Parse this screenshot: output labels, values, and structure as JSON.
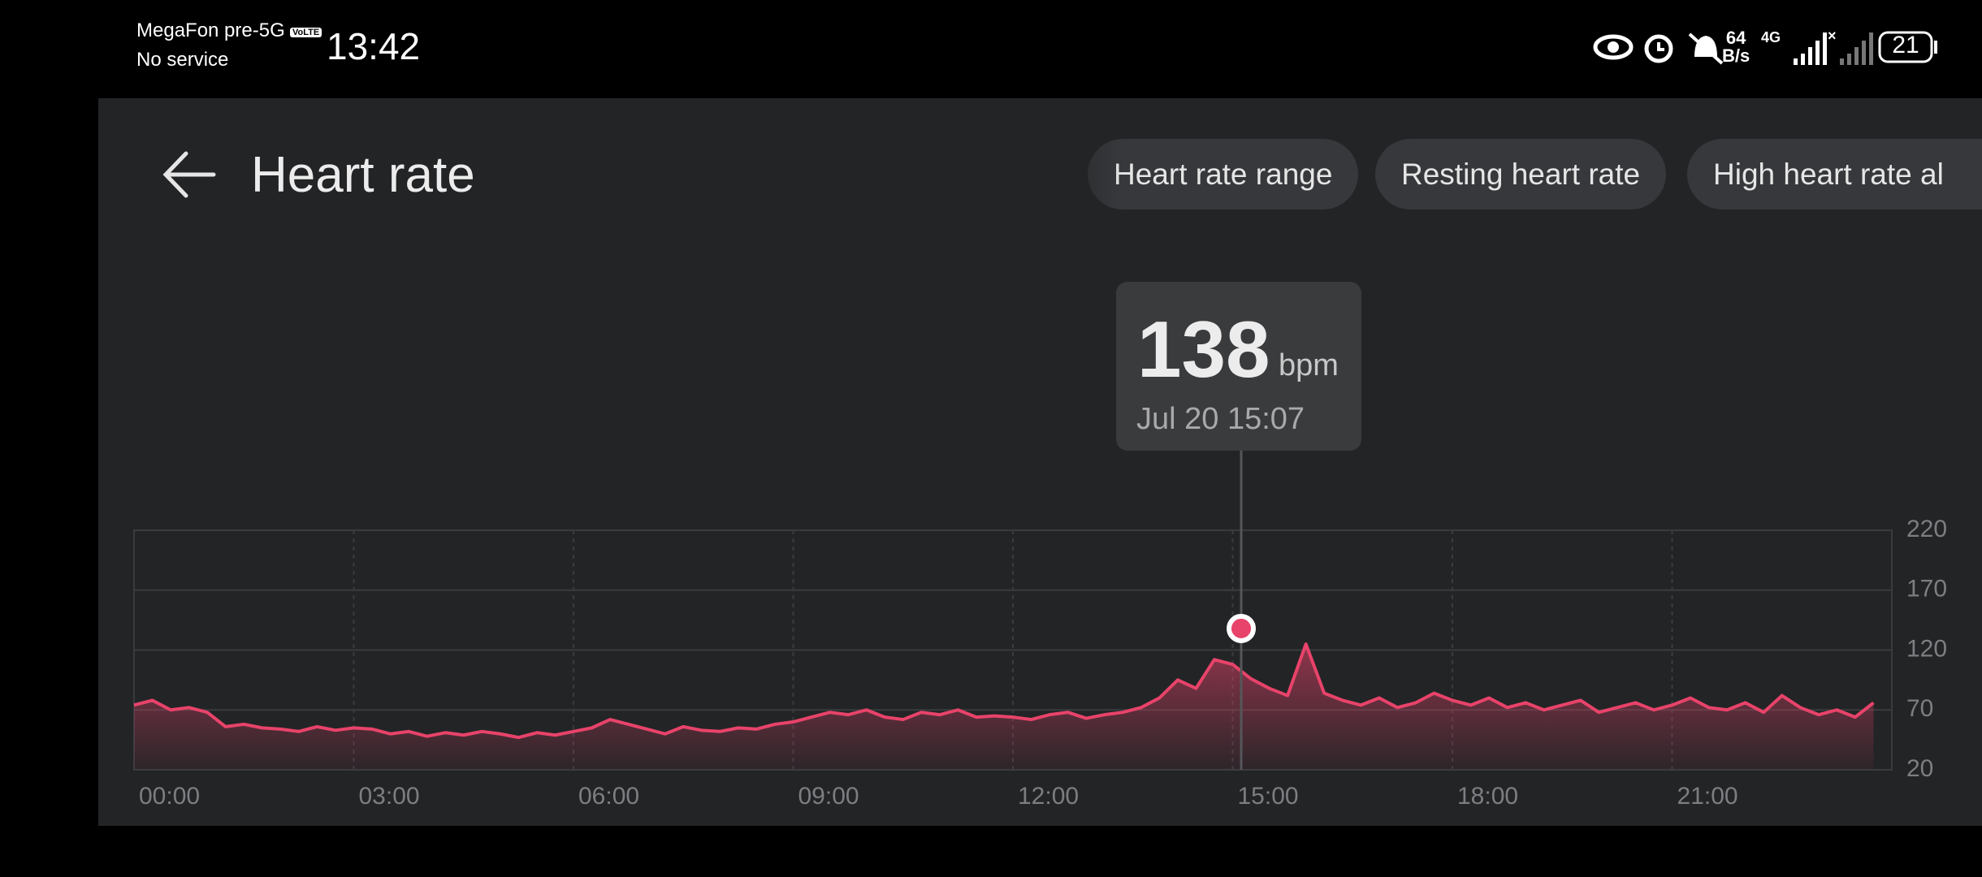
{
  "status_bar": {
    "carrier": "MegaFon pre-5G",
    "volte": "VoLTE",
    "service": "No service",
    "time": "13:42",
    "net_speed": "64",
    "net_unit": "B/s",
    "network": "4G",
    "battery": "21"
  },
  "header": {
    "title": "Heart rate",
    "tabs": [
      "Heart rate range",
      "Resting heart rate",
      "High heart rate al"
    ]
  },
  "chart_data": {
    "type": "line",
    "color": "#e8436a",
    "unit": "bpm",
    "x": [
      0,
      0.25,
      0.5,
      0.75,
      1,
      1.25,
      1.5,
      1.75,
      2,
      2.25,
      2.5,
      2.75,
      3,
      3.25,
      3.5,
      3.75,
      4,
      4.25,
      4.5,
      4.75,
      5,
      5.25,
      5.5,
      5.75,
      6,
      6.25,
      6.5,
      6.75,
      7,
      7.25,
      7.5,
      7.75,
      8,
      8.25,
      8.5,
      8.75,
      9,
      9.25,
      9.5,
      9.75,
      10,
      10.25,
      10.5,
      10.75,
      11,
      11.25,
      11.5,
      11.75,
      12,
      12.25,
      12.5,
      12.75,
      13,
      13.25,
      13.5,
      13.75,
      14,
      14.25,
      14.5,
      14.75,
      15,
      15.25,
      15.5,
      15.75,
      16,
      16.25,
      16.5,
      16.75,
      17,
      17.25,
      17.5,
      17.75,
      18,
      18.25,
      18.5,
      18.75,
      19,
      19.25,
      19.5,
      19.75,
      20,
      20.25,
      20.5,
      20.75,
      21,
      21.25,
      21.5,
      21.75,
      22,
      22.25,
      22.5,
      22.75,
      23,
      23.25,
      23.5,
      23.75
    ],
    "values": [
      74,
      78,
      70,
      72,
      68,
      56,
      58,
      55,
      54,
      52,
      56,
      53,
      55,
      54,
      50,
      52,
      48,
      51,
      49,
      52,
      50,
      47,
      51,
      49,
      52,
      55,
      62,
      58,
      54,
      50,
      56,
      53,
      52,
      55,
      54,
      58,
      60,
      64,
      68,
      66,
      70,
      64,
      62,
      68,
      66,
      70,
      64,
      65,
      64,
      62,
      66,
      68,
      63,
      66,
      68,
      72,
      80,
      95,
      88,
      112,
      108,
      96,
      88,
      82,
      125,
      84,
      78,
      74,
      80,
      72,
      76,
      84,
      78,
      74,
      80,
      72,
      76,
      70,
      74,
      78,
      68,
      72,
      76,
      70,
      74,
      80,
      72,
      70,
      76,
      68,
      82,
      72,
      66,
      70,
      64,
      76
    ],
    "highlight": {
      "x": 15.1167,
      "value": 138,
      "label": "Jul 20 15:07"
    },
    "xlim": [
      0,
      24
    ],
    "xticks": [
      {
        "value": 0,
        "label": "00:00"
      },
      {
        "value": 3,
        "label": "03:00"
      },
      {
        "value": 6,
        "label": "06:00"
      },
      {
        "value": 9,
        "label": "09:00"
      },
      {
        "value": 12,
        "label": "12:00"
      },
      {
        "value": 15,
        "label": "15:00"
      },
      {
        "value": 18,
        "label": "18:00"
      },
      {
        "value": 21,
        "label": "21:00"
      }
    ],
    "ylim": [
      20,
      220
    ],
    "yticks": [
      20,
      70,
      120,
      170,
      220
    ],
    "grid": true
  }
}
